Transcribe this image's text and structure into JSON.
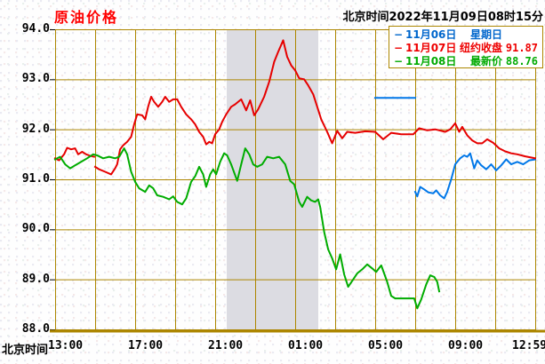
{
  "title": "原油价格",
  "timestamp": "北京时间2022年11月09日08时15分",
  "legend": {
    "dash": "−",
    "items": [
      {
        "date": "11月06日",
        "label": "星期日",
        "value": "",
        "color": "#0066CC"
      },
      {
        "date": "11月07日",
        "label": "纽约收盘",
        "value": "91.87",
        "color": "#EE0000"
      },
      {
        "date": "11月08日",
        "label": "最新价",
        "value": "88.76",
        "color": "#00AA00"
      }
    ]
  },
  "colors": {
    "background": "#FFFFFF",
    "grid": "#AC8600",
    "text": "#000000",
    "title": "#FF0000",
    "band": "#DCDCE2",
    "blue": "#0077E8",
    "red": "#E60000",
    "green": "#00AC00"
  },
  "chart_data": {
    "type": "line",
    "title": "原油价格",
    "grid": true,
    "legend_position": "top-right",
    "x_axis": {
      "label": "北京时间",
      "tick_labels": [
        "13:00",
        "17:00",
        "21:00",
        "01:00",
        "05:00",
        "09:00",
        "12:59"
      ],
      "tick_hours": [
        0,
        4,
        8,
        12,
        16,
        20,
        24
      ],
      "minor_step_hours": 2,
      "range_hours": [
        0,
        24
      ]
    },
    "y_axis": {
      "tick_labels": [
        "94.0",
        "93.0",
        "92.0",
        "91.0",
        "90.0",
        "89.0",
        "88.0"
      ],
      "ticks": [
        94,
        93,
        92,
        91,
        90,
        89,
        88
      ],
      "range": [
        88,
        94
      ]
    },
    "highlight_band_hours": [
      8.58,
      13.16
    ],
    "series": [
      {
        "id": "nov06",
        "name": "11月06日",
        "note": "星期日",
        "color": "#0077E8",
        "segments": [
          [
            [
              16.0,
              92.63
            ],
            [
              18.0,
              92.63
            ]
          ],
          [
            [
              18.0,
              90.75
            ],
            [
              18.1,
              90.66
            ],
            [
              18.25,
              90.85
            ],
            [
              18.45,
              90.8
            ],
            [
              18.65,
              90.74
            ],
            [
              18.9,
              90.72
            ],
            [
              19.05,
              90.78
            ],
            [
              19.25,
              90.68
            ],
            [
              19.45,
              90.62
            ],
            [
              19.6,
              90.75
            ],
            [
              19.8,
              91.0
            ],
            [
              20.0,
              91.3
            ],
            [
              20.25,
              91.42
            ],
            [
              20.45,
              91.48
            ],
            [
              20.6,
              91.45
            ],
            [
              20.75,
              91.52
            ],
            [
              20.95,
              91.22
            ],
            [
              21.1,
              91.38
            ],
            [
              21.3,
              91.28
            ],
            [
              21.55,
              91.2
            ],
            [
              21.8,
              91.3
            ],
            [
              22.05,
              91.18
            ],
            [
              22.3,
              91.28
            ],
            [
              22.55,
              91.4
            ],
            [
              22.8,
              91.3
            ],
            [
              23.1,
              91.35
            ],
            [
              23.4,
              91.3
            ],
            [
              23.7,
              91.38
            ],
            [
              24.0,
              91.4
            ]
          ]
        ]
      },
      {
        "id": "nov07",
        "name": "11月07日",
        "note": "纽约收盘 91.87",
        "close_value": 91.87,
        "color": "#E60000",
        "segments": [
          [
            [
              0,
              91.42
            ],
            [
              0.2,
              91.38
            ],
            [
              0.45,
              91.5
            ],
            [
              0.6,
              91.63
            ],
            [
              0.8,
              91.6
            ],
            [
              1.0,
              91.62
            ],
            [
              1.15,
              91.5
            ],
            [
              1.35,
              91.55
            ],
            [
              1.55,
              91.5
            ],
            [
              1.75,
              91.47
            ],
            [
              1.95,
              91.45
            ]
          ],
          [
            [
              2.0,
              91.25
            ],
            [
              2.2,
              91.2
            ],
            [
              2.5,
              91.15
            ],
            [
              2.8,
              91.1
            ],
            [
              3.0,
              91.22
            ],
            [
              3.1,
              91.3
            ],
            [
              3.25,
              91.6
            ],
            [
              3.4,
              91.68
            ],
            [
              3.6,
              91.75
            ],
            [
              3.8,
              91.85
            ],
            [
              3.95,
              92.1
            ],
            [
              4.1,
              92.3
            ],
            [
              4.35,
              92.28
            ],
            [
              4.5,
              92.2
            ],
            [
              4.65,
              92.45
            ],
            [
              4.8,
              92.65
            ],
            [
              4.95,
              92.55
            ],
            [
              5.15,
              92.45
            ],
            [
              5.35,
              92.55
            ],
            [
              5.5,
              92.65
            ],
            [
              5.7,
              92.55
            ],
            [
              5.9,
              92.6
            ],
            [
              6.1,
              92.6
            ],
            [
              6.3,
              92.45
            ],
            [
              6.55,
              92.3
            ],
            [
              6.8,
              92.2
            ],
            [
              7.0,
              92.1
            ],
            [
              7.2,
              91.95
            ],
            [
              7.4,
              91.85
            ],
            [
              7.55,
              91.7
            ],
            [
              7.7,
              91.75
            ],
            [
              7.85,
              91.72
            ],
            [
              8.0,
              91.9
            ],
            [
              8.2,
              92.0
            ],
            [
              8.35,
              92.15
            ],
            [
              8.55,
              92.3
            ],
            [
              8.8,
              92.45
            ],
            [
              9.0,
              92.5
            ],
            [
              9.3,
              92.6
            ],
            [
              9.55,
              92.38
            ],
            [
              9.75,
              92.58
            ],
            [
              9.95,
              92.28
            ],
            [
              10.15,
              92.4
            ],
            [
              10.45,
              92.65
            ],
            [
              10.7,
              92.95
            ],
            [
              10.95,
              93.35
            ],
            [
              11.15,
              93.55
            ],
            [
              11.4,
              93.78
            ],
            [
              11.6,
              93.45
            ],
            [
              11.8,
              93.28
            ],
            [
              12.0,
              93.18
            ],
            [
              12.2,
              93.02
            ],
            [
              12.45,
              93.0
            ],
            [
              12.65,
              92.88
            ],
            [
              12.9,
              92.7
            ],
            [
              13.1,
              92.45
            ],
            [
              13.3,
              92.2
            ],
            [
              13.6,
              91.95
            ],
            [
              13.85,
              91.72
            ],
            [
              14.1,
              91.97
            ],
            [
              14.35,
              91.82
            ],
            [
              14.6,
              91.95
            ],
            [
              15.0,
              91.93
            ],
            [
              15.5,
              91.96
            ],
            [
              16.0,
              91.95
            ],
            [
              16.4,
              91.8
            ],
            [
              16.8,
              91.93
            ],
            [
              17.3,
              91.9
            ],
            [
              17.9,
              91.9
            ],
            [
              18.2,
              92.02
            ],
            [
              18.6,
              91.98
            ],
            [
              19.0,
              92.0
            ],
            [
              19.5,
              91.95
            ],
            [
              19.75,
              92.0
            ],
            [
              20.0,
              92.12
            ],
            [
              20.2,
              91.95
            ],
            [
              20.35,
              92.05
            ],
            [
              20.6,
              91.88
            ],
            [
              20.85,
              91.78
            ],
            [
              21.1,
              91.72
            ],
            [
              21.35,
              91.72
            ],
            [
              21.6,
              91.8
            ],
            [
              21.9,
              91.73
            ],
            [
              22.2,
              91.62
            ],
            [
              22.5,
              91.56
            ],
            [
              22.8,
              91.52
            ],
            [
              23.1,
              91.5
            ],
            [
              23.5,
              91.46
            ],
            [
              24.0,
              91.42
            ]
          ]
        ]
      },
      {
        "id": "nov08",
        "name": "11月08日",
        "note": "最新价 88.76",
        "latest_value": 88.76,
        "color": "#00AC00",
        "segments": [
          [
            [
              0,
              91.4
            ],
            [
              0.25,
              91.45
            ],
            [
              0.5,
              91.3
            ],
            [
              0.75,
              91.22
            ],
            [
              1.0,
              91.28
            ],
            [
              1.3,
              91.35
            ],
            [
              1.6,
              91.42
            ],
            [
              1.9,
              91.5
            ],
            [
              2.1,
              91.48
            ],
            [
              2.4,
              91.42
            ],
            [
              2.7,
              91.45
            ],
            [
              3.0,
              91.42
            ],
            [
              3.2,
              91.45
            ],
            [
              3.45,
              91.62
            ],
            [
              3.6,
              91.5
            ],
            [
              3.8,
              91.15
            ],
            [
              4.0,
              90.95
            ],
            [
              4.2,
              90.82
            ],
            [
              4.5,
              90.75
            ],
            [
              4.7,
              90.88
            ],
            [
              4.9,
              90.82
            ],
            [
              5.1,
              90.68
            ],
            [
              5.4,
              90.65
            ],
            [
              5.7,
              90.6
            ],
            [
              5.9,
              90.66
            ],
            [
              6.1,
              90.55
            ],
            [
              6.35,
              90.5
            ],
            [
              6.55,
              90.62
            ],
            [
              6.8,
              90.95
            ],
            [
              7.0,
              91.06
            ],
            [
              7.2,
              91.25
            ],
            [
              7.4,
              91.1
            ],
            [
              7.55,
              90.85
            ],
            [
              7.75,
              91.1
            ],
            [
              7.9,
              91.2
            ],
            [
              8.05,
              91.1
            ],
            [
              8.25,
              91.35
            ],
            [
              8.45,
              91.52
            ],
            [
              8.6,
              91.48
            ],
            [
              8.8,
              91.3
            ],
            [
              9.1,
              90.97
            ],
            [
              9.3,
              91.3
            ],
            [
              9.5,
              91.62
            ],
            [
              9.7,
              91.5
            ],
            [
              9.9,
              91.3
            ],
            [
              10.1,
              91.25
            ],
            [
              10.35,
              91.3
            ],
            [
              10.6,
              91.45
            ],
            [
              10.9,
              91.42
            ],
            [
              11.2,
              91.45
            ],
            [
              11.5,
              91.3
            ],
            [
              11.75,
              90.97
            ],
            [
              11.95,
              90.9
            ],
            [
              12.2,
              90.55
            ],
            [
              12.35,
              90.45
            ],
            [
              12.6,
              90.65
            ],
            [
              12.8,
              90.58
            ],
            [
              13.0,
              90.55
            ],
            [
              13.15,
              90.6
            ],
            [
              13.25,
              90.45
            ],
            [
              13.45,
              89.95
            ],
            [
              13.65,
              89.6
            ],
            [
              13.85,
              89.42
            ],
            [
              14.05,
              89.2
            ],
            [
              14.25,
              89.5
            ],
            [
              14.45,
              89.1
            ],
            [
              14.65,
              88.85
            ],
            [
              14.9,
              89.0
            ],
            [
              15.1,
              89.12
            ],
            [
              15.35,
              89.2
            ],
            [
              15.6,
              89.3
            ],
            [
              15.85,
              89.22
            ],
            [
              16.05,
              89.15
            ],
            [
              16.3,
              89.28
            ],
            [
              16.6,
              88.95
            ],
            [
              16.8,
              88.67
            ],
            [
              17.0,
              88.62
            ],
            [
              17.95,
              88.62
            ],
            [
              18.1,
              88.42
            ],
            [
              18.3,
              88.6
            ],
            [
              18.55,
              88.9
            ],
            [
              18.75,
              89.08
            ],
            [
              18.95,
              89.05
            ],
            [
              19.1,
              88.95
            ],
            [
              19.2,
              88.76
            ]
          ]
        ]
      }
    ]
  }
}
